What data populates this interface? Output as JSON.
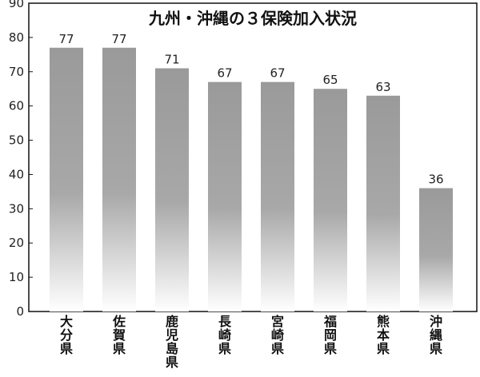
{
  "chart_data": {
    "type": "bar",
    "title": "九州・沖縄の３保険加入状況",
    "xlabel": "",
    "ylabel": "",
    "categories": [
      "大分県",
      "佐賀県",
      "鹿児島県",
      "長崎県",
      "宮崎県",
      "福岡県",
      "熊本県",
      "沖縄県"
    ],
    "values": [
      77,
      77,
      71,
      67,
      67,
      65,
      63,
      36
    ],
    "data_labels": [
      "77",
      "77",
      "71",
      "67",
      "67",
      "65",
      "63",
      "36"
    ],
    "ylim": [
      0,
      90
    ],
    "yticks": [
      "0",
      "10",
      "20",
      "30",
      "40",
      "50",
      "60",
      "70",
      "80",
      "90"
    ],
    "grid": false,
    "legend": "none",
    "bar_color_top": "#9a9a9a",
    "bar_color_bottom": "#ffffff"
  }
}
